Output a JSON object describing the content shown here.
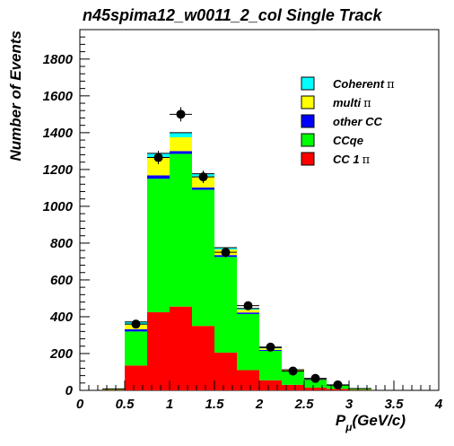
{
  "chart_data": {
    "type": "bar",
    "stacked": true,
    "title": "n45spima12_w0011_2_col Single Track",
    "xlabel_main": "P",
    "xlabel_sub": "μ",
    "xlabel_unit": "(GeV/c)",
    "ylabel": "Number of Events",
    "xlim": [
      0,
      4
    ],
    "ylim": [
      0,
      1960
    ],
    "xticks": [
      "0",
      "0.5",
      "1",
      "1.5",
      "2",
      "2.5",
      "3",
      "3.5",
      "4"
    ],
    "xtick_values": [
      0,
      0.5,
      1,
      1.5,
      2,
      2.5,
      3,
      3.5,
      4
    ],
    "yticks": [
      "0",
      "200",
      "400",
      "600",
      "800",
      "1000",
      "1200",
      "1400",
      "1600",
      "1800"
    ],
    "ytick_values": [
      0,
      200,
      400,
      600,
      800,
      1000,
      1200,
      1400,
      1600,
      1800
    ],
    "bin_edges": [
      0.25,
      0.5,
      0.75,
      1.0,
      1.25,
      1.5,
      1.75,
      2.0,
      2.25,
      2.5,
      2.75,
      3.0,
      3.25
    ],
    "series": [
      {
        "name": "CC 1π",
        "color": "#ff0000",
        "values": [
          3,
          135,
          425,
          455,
          350,
          205,
          110,
          55,
          30,
          15,
          8,
          3
        ]
      },
      {
        "name": "CCqe",
        "color": "#00ff00",
        "values": [
          5,
          185,
          725,
          830,
          740,
          520,
          305,
          160,
          75,
          42,
          20,
          7
        ]
      },
      {
        "name": "other CC",
        "color": "#0000ff",
        "values": [
          0,
          12,
          18,
          15,
          12,
          10,
          8,
          5,
          2,
          1,
          0,
          0
        ]
      },
      {
        "name": "multi π",
        "color": "#ffff00",
        "values": [
          0,
          25,
          95,
          75,
          60,
          30,
          15,
          8,
          3,
          2,
          0,
          0
        ]
      },
      {
        "name": "Coherent π",
        "color": "#00ffff",
        "values": [
          0,
          15,
          25,
          25,
          15,
          10,
          7,
          4,
          2,
          0,
          0,
          0
        ]
      }
    ],
    "data_points": {
      "x": [
        0.625,
        0.875,
        1.125,
        1.375,
        1.625,
        1.875,
        2.125,
        2.375,
        2.625,
        2.875
      ],
      "y": [
        360,
        1265,
        1500,
        1160,
        750,
        460,
        235,
        105,
        65,
        30
      ],
      "xerr": 0.125,
      "yerr": [
        19,
        36,
        39,
        34,
        27,
        21,
        15,
        10,
        8,
        6
      ]
    },
    "legend": {
      "placement": "top-right",
      "entries": [
        {
          "label": "Coherent",
          "sym": "π",
          "color": "#00ffff"
        },
        {
          "label": "multi",
          "sym": "π",
          "color": "#ffff00"
        },
        {
          "label": "other CC",
          "sym": "",
          "color": "#0000ff"
        },
        {
          "label": "CCqe",
          "sym": "",
          "color": "#00ff00"
        },
        {
          "label": "CC 1",
          "sym": "π",
          "color": "#ff0000"
        }
      ]
    }
  }
}
